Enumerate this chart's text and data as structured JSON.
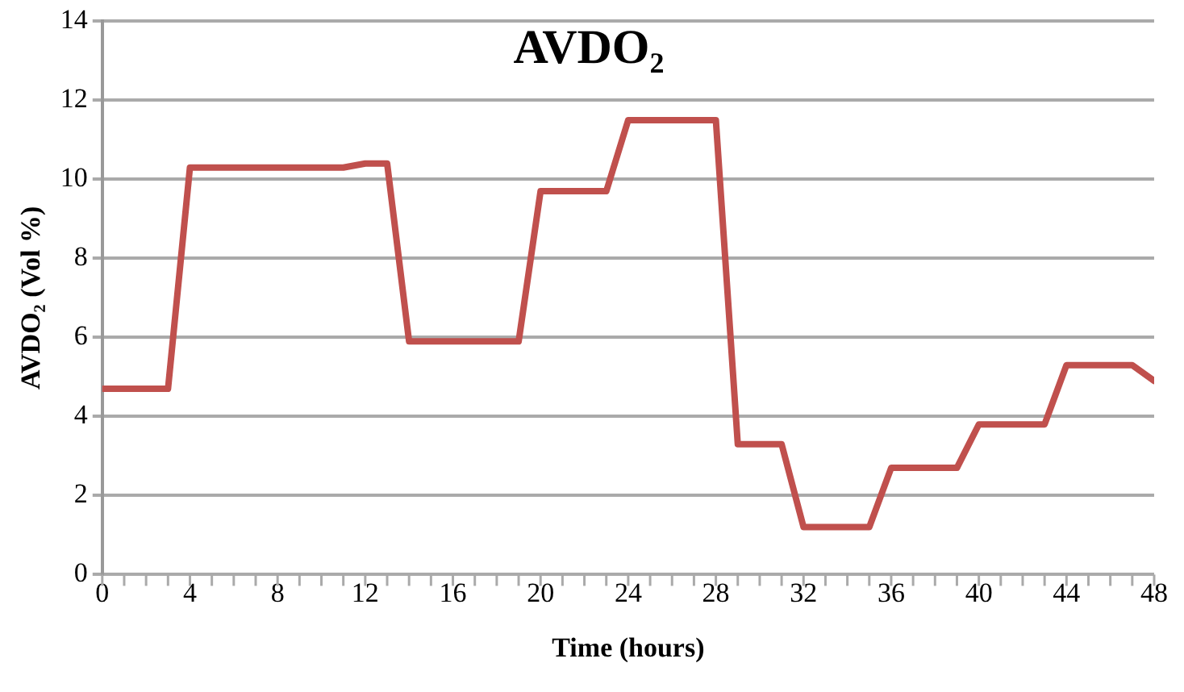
{
  "chart_data": {
    "type": "line",
    "title": "AVDO₂",
    "xlabel": "Time (hours)",
    "ylabel": "AVDO₂ (Vol %)",
    "x": [
      0,
      3,
      4,
      11,
      12,
      13,
      14,
      19,
      20,
      23,
      24,
      28,
      29,
      31,
      32,
      35,
      36,
      39,
      40,
      43,
      44,
      47,
      48
    ],
    "series": [
      {
        "color": "#c0504d",
        "values": [
          4.7,
          4.7,
          10.3,
          10.3,
          10.4,
          10.4,
          5.9,
          5.9,
          9.7,
          9.7,
          11.5,
          11.5,
          3.3,
          3.3,
          1.2,
          1.2,
          2.7,
          2.7,
          3.8,
          3.8,
          5.3,
          5.3,
          4.9
        ]
      }
    ],
    "xlim": [
      0,
      48
    ],
    "xticks": [
      0,
      {
        "value": 1,
        "label": null
      },
      {
        "value": 2,
        "label": null
      },
      {
        "value": 3,
        "label": null
      },
      4,
      {
        "value": 5,
        "label": null
      },
      {
        "value": 6,
        "label": null
      },
      {
        "value": 7,
        "label": null
      },
      8,
      {
        "value": 9,
        "label": null
      },
      {
        "value": 10,
        "label": null
      },
      {
        "value": 11,
        "label": null
      },
      12,
      {
        "value": 13,
        "label": null
      },
      {
        "value": 14,
        "label": null
      },
      {
        "value": 15,
        "label": null
      },
      16,
      {
        "value": 17,
        "label": null
      },
      {
        "value": 18,
        "label": null
      },
      {
        "value": 19,
        "label": null
      },
      20,
      {
        "value": 21,
        "label": null
      },
      {
        "value": 22,
        "label": null
      },
      {
        "value": 23,
        "label": null
      },
      24,
      {
        "value": 25,
        "label": null
      },
      {
        "value": 26,
        "label": null
      },
      {
        "value": 27,
        "label": null
      },
      28,
      {
        "value": 29,
        "label": null
      },
      {
        "value": 30,
        "label": null
      },
      {
        "value": 31,
        "label": null
      },
      32,
      {
        "value": 33,
        "label": null
      },
      {
        "value": 34,
        "label": null
      },
      {
        "value": 35,
        "label": null
      },
      36,
      {
        "value": 37,
        "label": null
      },
      {
        "value": 38,
        "label": null
      },
      {
        "value": 39,
        "label": null
      },
      40,
      {
        "value": 41,
        "label": null
      },
      {
        "value": 42,
        "label": null
      },
      {
        "value": 43,
        "label": null
      },
      44,
      {
        "value": 45,
        "label": null
      },
      {
        "value": 46,
        "label": null
      },
      {
        "value": 47,
        "label": null
      },
      48
    ],
    "ylim": [
      0,
      14
    ],
    "yticks": [
      0,
      2,
      4,
      6,
      8,
      10,
      12,
      14
    ],
    "grid": "y",
    "legend": false,
    "marker": "none",
    "line_style": "solid"
  }
}
